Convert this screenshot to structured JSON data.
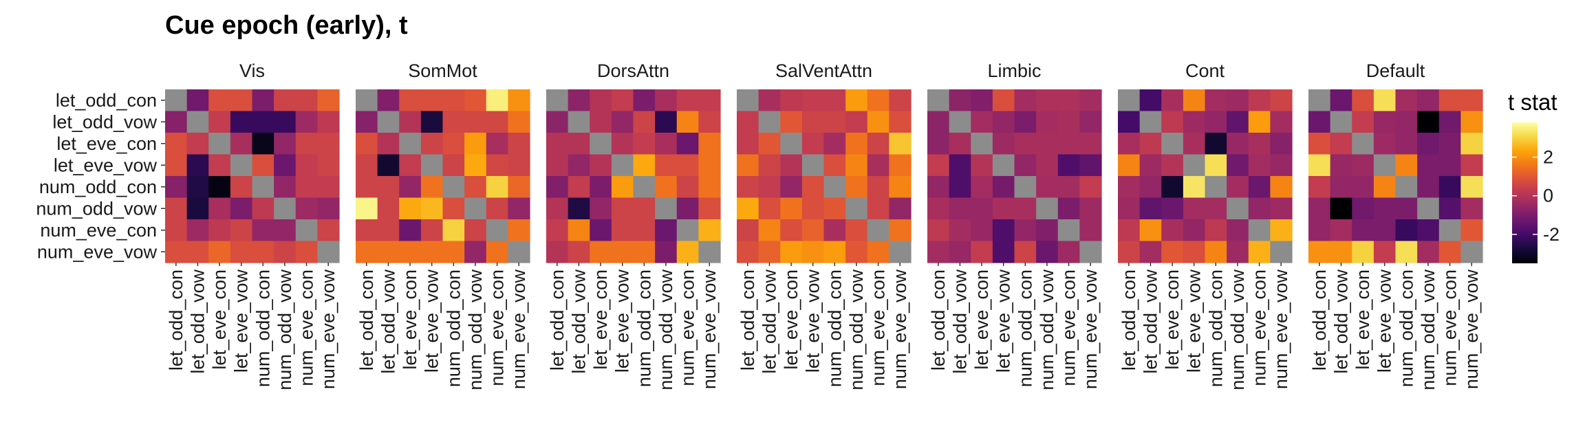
{
  "chart_data": {
    "type": "heatmap",
    "title": "Cue epoch (early), t",
    "row_labels": [
      "let_odd_con",
      "let_odd_vow",
      "let_eve_con",
      "let_eve_vow",
      "num_odd_con",
      "num_odd_vow",
      "num_eve_con",
      "num_eve_vow"
    ],
    "col_labels": [
      "let_odd_con",
      "let_odd_vow",
      "let_eve_con",
      "let_eve_vow",
      "num_odd_con",
      "num_odd_vow",
      "num_eve_con",
      "num_eve_vow"
    ],
    "diagonal": "NA (grey)",
    "legend": {
      "title": "t stat",
      "ticks": [
        2,
        0,
        -2
      ],
      "tick_labels": [
        "2",
        "0",
        "-2"
      ],
      "range": [
        -3.5,
        3.8
      ],
      "palette": "inferno",
      "na_color": "#8c8c8c",
      "position": "right"
    },
    "panels": [
      {
        "name": "Vis",
        "matrix": [
          [
            null,
            -1.2,
            0.8,
            0.8,
            -1.0,
            0.5,
            0.5,
            1.2
          ],
          [
            -0.8,
            null,
            0.3,
            -2.2,
            -2.2,
            -2.2,
            -0.4,
            0.2
          ],
          [
            0.8,
            0.3,
            null,
            -0.2,
            -3.2,
            -0.6,
            0.5,
            0.5
          ],
          [
            0.8,
            -2.4,
            0.3,
            null,
            0.8,
            -1.3,
            0.3,
            0.5
          ],
          [
            -0.8,
            -2.6,
            -3.3,
            0.5,
            null,
            -0.6,
            0.3,
            0.3
          ],
          [
            0.5,
            -2.7,
            -0.2,
            -1.0,
            0.2,
            null,
            -0.4,
            -0.6
          ],
          [
            0.5,
            -0.4,
            0.2,
            0.5,
            -0.6,
            -0.6,
            null,
            0.5
          ],
          [
            0.8,
            0.8,
            1.3,
            0.8,
            0.8,
            0.5,
            0.8,
            null
          ]
        ]
      },
      {
        "name": "SomMot",
        "matrix": [
          [
            null,
            -0.9,
            0.8,
            0.8,
            0.8,
            1.0,
            3.5,
            2.0
          ],
          [
            -0.8,
            null,
            0.0,
            -2.7,
            0.6,
            0.6,
            0.6,
            1.5
          ],
          [
            0.8,
            0.0,
            null,
            0.5,
            0.8,
            2.2,
            -0.2,
            0.5
          ],
          [
            0.5,
            -2.9,
            0.3,
            null,
            0.5,
            2.4,
            0.6,
            0.5
          ],
          [
            0.5,
            0.5,
            -0.6,
            1.5,
            null,
            0.8,
            3.0,
            1.3
          ],
          [
            3.6,
            0.5,
            2.4,
            2.6,
            0.8,
            null,
            0.5,
            -0.6
          ],
          [
            0.5,
            0.5,
            -1.3,
            0.5,
            3.0,
            0.5,
            null,
            1.5
          ],
          [
            1.5,
            1.5,
            1.5,
            1.5,
            1.5,
            -0.6,
            1.5,
            null
          ]
        ]
      },
      {
        "name": "DorsAttn",
        "matrix": [
          [
            null,
            -0.7,
            0.0,
            0.3,
            -1.0,
            -0.2,
            0.3,
            0.3
          ],
          [
            -0.7,
            null,
            0.0,
            -0.6,
            0.5,
            -2.4,
            1.8,
            0.5
          ],
          [
            0.0,
            0.0,
            null,
            0.0,
            0.3,
            -0.2,
            -1.3,
            1.5
          ],
          [
            0.0,
            -0.6,
            0.0,
            null,
            2.4,
            0.8,
            0.8,
            1.5
          ],
          [
            -0.9,
            0.3,
            -1.0,
            2.2,
            null,
            1.5,
            0.5,
            1.5
          ],
          [
            0.0,
            -2.6,
            -0.6,
            0.5,
            0.5,
            null,
            -1.0,
            0.8
          ],
          [
            0.3,
            1.8,
            -1.3,
            0.5,
            0.5,
            -1.3,
            null,
            2.5
          ],
          [
            0.0,
            0.5,
            1.5,
            1.5,
            1.5,
            -1.0,
            2.5,
            null
          ]
        ]
      },
      {
        "name": "SalVentAttn",
        "matrix": [
          [
            null,
            -0.2,
            0.2,
            0.3,
            0.3,
            2.2,
            1.5,
            0.5
          ],
          [
            0.3,
            null,
            1.0,
            0.5,
            0.5,
            0.3,
            2.0,
            0.8
          ],
          [
            0.3,
            1.0,
            null,
            0.3,
            -0.3,
            1.5,
            0.5,
            2.8
          ],
          [
            1.5,
            0.5,
            0.0,
            null,
            0.8,
            1.8,
            -0.2,
            1.5
          ],
          [
            0.5,
            0.3,
            -0.6,
            0.8,
            null,
            1.5,
            0.5,
            1.8
          ],
          [
            2.4,
            0.8,
            1.5,
            0.8,
            1.0,
            null,
            0.5,
            -0.6
          ],
          [
            0.5,
            1.8,
            0.8,
            1.2,
            -0.2,
            0.8,
            null,
            1.5
          ],
          [
            0.8,
            1.2,
            2.2,
            2.0,
            2.2,
            1.0,
            1.5,
            null
          ]
        ]
      },
      {
        "name": "Limbic",
        "matrix": [
          [
            null,
            -0.7,
            -0.9,
            0.8,
            -0.3,
            -0.1,
            -0.1,
            -0.3
          ],
          [
            -0.7,
            null,
            -0.3,
            -0.6,
            -1.0,
            -0.3,
            -0.2,
            -0.6
          ],
          [
            -0.7,
            -0.2,
            null,
            -0.4,
            -0.2,
            -0.2,
            -0.2,
            -0.2
          ],
          [
            0.3,
            -1.8,
            0.0,
            null,
            -0.6,
            -0.2,
            -1.8,
            -1.5
          ],
          [
            -0.6,
            -1.8,
            -0.3,
            -1.1,
            null,
            -0.3,
            -0.3,
            0.3
          ],
          [
            -0.2,
            -0.5,
            -0.5,
            -0.2,
            -0.2,
            null,
            -1.0,
            -0.4
          ],
          [
            0.2,
            -0.3,
            -0.5,
            -1.8,
            -0.6,
            -0.9,
            null,
            -0.4
          ],
          [
            -0.3,
            -0.5,
            0.3,
            -1.8,
            0.5,
            -1.3,
            -0.4,
            null
          ]
        ]
      },
      {
        "name": "Cont",
        "matrix": [
          [
            null,
            -2.0,
            -0.2,
            1.8,
            -0.3,
            -0.4,
            0.2,
            0.5
          ],
          [
            -2.0,
            null,
            0.2,
            -0.4,
            -0.6,
            -1.5,
            2.2,
            -0.3
          ],
          [
            -0.2,
            0.2,
            null,
            -0.2,
            -2.9,
            -0.5,
            -0.2,
            -0.8
          ],
          [
            1.8,
            -0.4,
            0.0,
            null,
            3.2,
            -1.2,
            -0.3,
            -0.5
          ],
          [
            -0.3,
            -0.6,
            -2.9,
            3.3,
            null,
            -0.3,
            -1.3,
            1.8
          ],
          [
            -0.4,
            -1.5,
            -1.3,
            -0.3,
            -0.3,
            null,
            -0.6,
            -0.4
          ],
          [
            0.2,
            2.0,
            -0.2,
            -0.6,
            0.2,
            -0.6,
            null,
            2.5
          ],
          [
            0.5,
            -0.3,
            1.0,
            0.8,
            1.8,
            -0.4,
            2.5,
            null
          ]
        ]
      },
      {
        "name": "Default",
        "matrix": [
          [
            null,
            -1.3,
            0.8,
            3.2,
            -0.3,
            -0.6,
            0.8,
            0.8
          ],
          [
            -1.3,
            null,
            0.3,
            -0.5,
            -0.6,
            -3.5,
            -1.2,
            2.0
          ],
          [
            0.8,
            0.3,
            null,
            -0.4,
            -0.6,
            -1.2,
            -1.0,
            3.0
          ],
          [
            3.2,
            -0.5,
            -0.4,
            null,
            1.8,
            -1.0,
            -1.0,
            0.3
          ],
          [
            0.3,
            -0.6,
            -0.6,
            1.8,
            null,
            -1.0,
            -2.2,
            3.2
          ],
          [
            -0.6,
            -3.5,
            -1.2,
            -1.0,
            -1.0,
            null,
            -1.7,
            -0.3
          ],
          [
            -0.6,
            -0.3,
            -1.0,
            -1.0,
            -2.2,
            -1.8,
            null,
            1.0
          ],
          [
            2.0,
            2.0,
            3.0,
            0.3,
            3.2,
            -0.3,
            1.0,
            null
          ]
        ]
      }
    ]
  }
}
